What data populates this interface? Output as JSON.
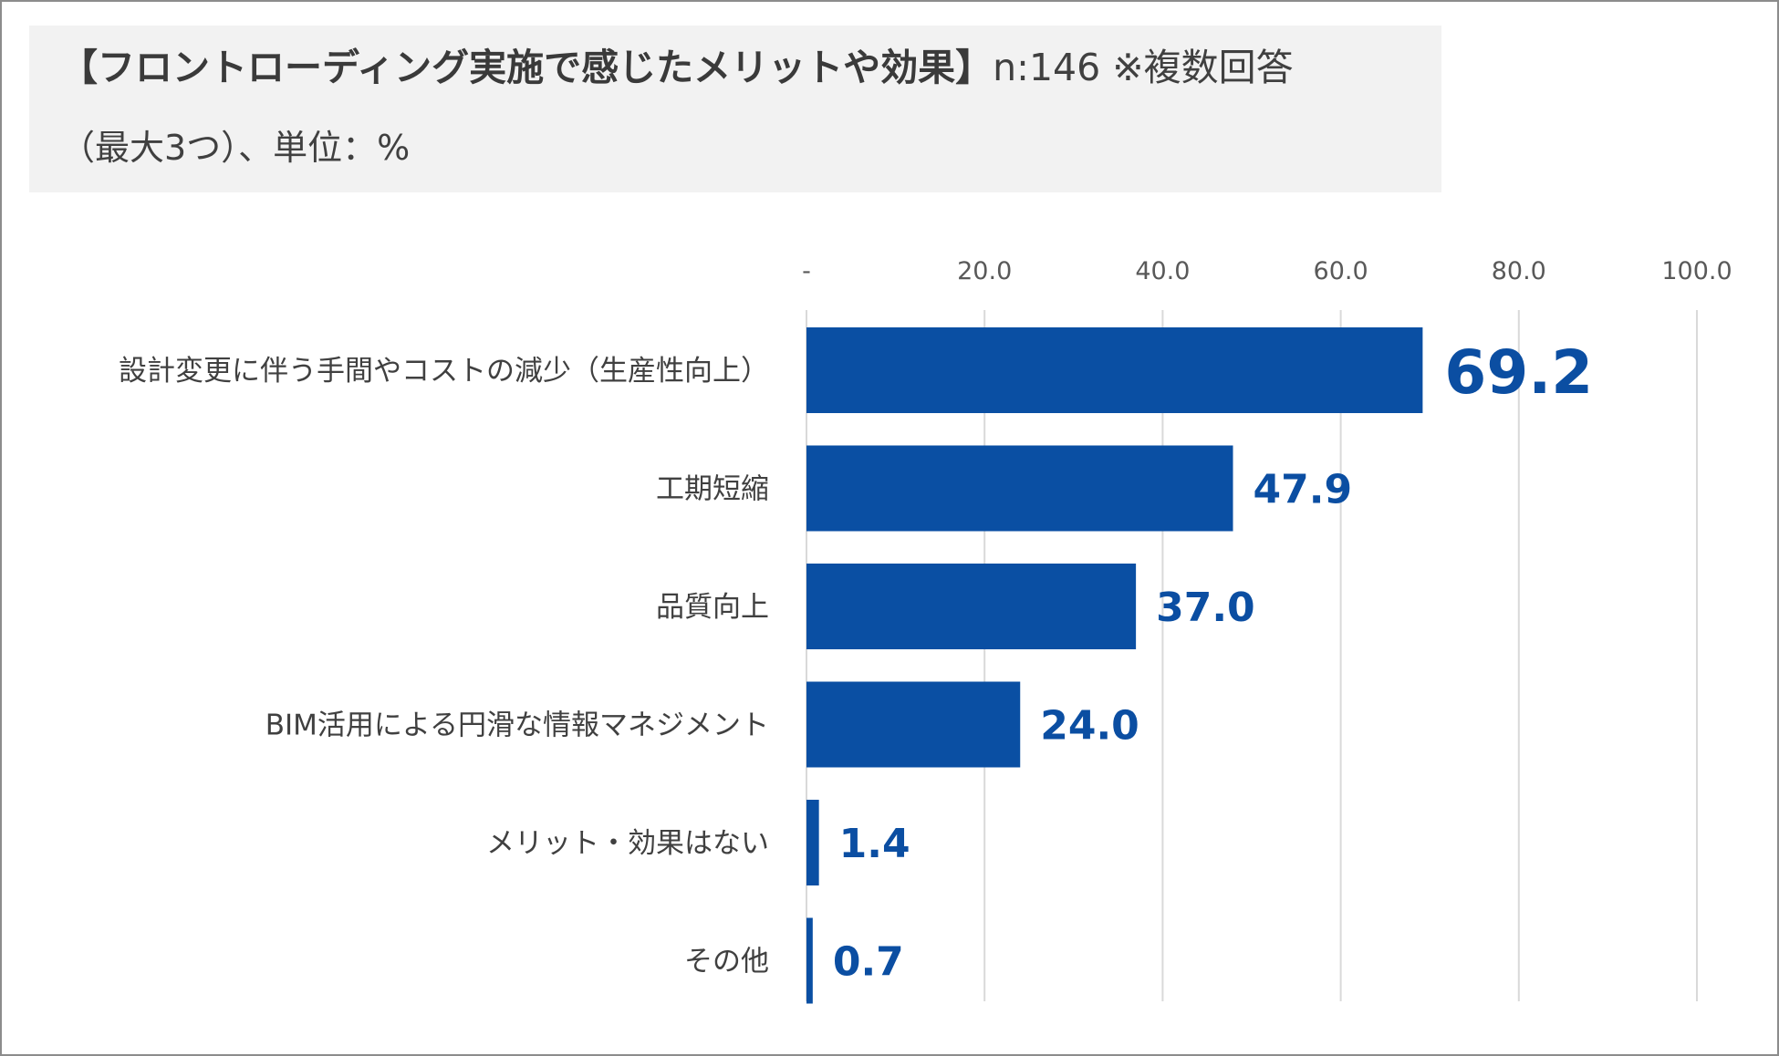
{
  "title": {
    "main": "【フロントローディング実施で感じたメリットや効果】",
    "sample": "n:146",
    "note": "※複数回答",
    "sub": "（最大3つ）、単位：%"
  },
  "colors": {
    "bar": "#0a4fa3",
    "value_label": "#0b4ea2",
    "grid": "#d9d9d9"
  },
  "chart_data": {
    "type": "bar",
    "orientation": "horizontal",
    "categories": [
      "設計変更に伴う手間やコストの減少（生産性向上）",
      "工期短縮",
      "品質向上",
      "BIM活用による円滑な情報マネジメント",
      "メリット・効果はない",
      "その他"
    ],
    "values": [
      69.2,
      47.9,
      37.0,
      24.0,
      1.4,
      0.7
    ],
    "value_labels": [
      "69.2",
      "47.9",
      "37.0",
      "24.0",
      "1.4",
      "0.7"
    ],
    "xlim": [
      0,
      100
    ],
    "ticks": [
      0,
      20,
      40,
      60,
      80,
      100
    ],
    "tick_labels": [
      "-",
      "20.0",
      "40.0",
      "60.0",
      "80.0",
      "100.0"
    ],
    "axis_position": "top",
    "grid": true,
    "unit": "%"
  }
}
